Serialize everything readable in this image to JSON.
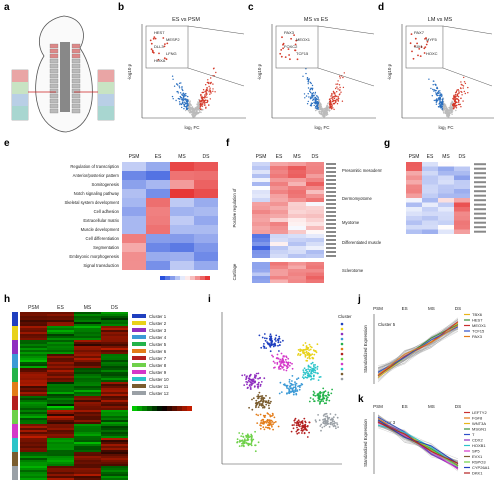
{
  "panels": {
    "a": {
      "label": "a"
    },
    "b": {
      "label": "b",
      "title": "ES vs PSM",
      "xlabel": "log₂ FC",
      "ylabel": "-log10 p",
      "genes": [
        "HES7",
        "MESP2",
        "DLL3",
        "LFNG",
        "HOXA"
      ]
    },
    "c": {
      "label": "c",
      "title": "MS vs ES",
      "xlabel": "log₂ FC",
      "ylabel": "-log10 p",
      "genes": [
        "PAX3",
        "MEOX1",
        "FOXC2",
        "TCF15"
      ]
    },
    "d": {
      "label": "d",
      "title": "LM vs MS",
      "xlabel": "log₂ FC",
      "ylabel": "-log10 p",
      "genes": [
        "PAX7",
        "MYF5",
        "SIX1",
        "HOXC"
      ]
    },
    "e": {
      "label": "e",
      "columns": [
        "PSM",
        "ES",
        "MS",
        "DS"
      ],
      "terms": [
        "Regulation of transcription",
        "Anterior/posterior pattern",
        "Somitogenesis",
        "Notch signaling pathway",
        "Skeletal system development",
        "Cell adhesion",
        "Extracellular matrix",
        "Muscle development",
        "Cell differentiation",
        "Segmentation",
        "Embryonic morphogenesis",
        "Signal transduction"
      ]
    },
    "f": {
      "label": "f",
      "columns": [
        "PSM",
        "ES",
        "MS",
        "DS"
      ],
      "ylabel_top": "Positive regulation of",
      "ylabel_bottom": "Cartilage",
      "groups": [
        "Presomitic mesoderm",
        "Dermomyotome",
        "Myotome",
        "Differentiated muscle",
        "Sclerotome"
      ]
    },
    "g": {
      "label": "g",
      "columns": [
        "PSM",
        "ES",
        "MS",
        "DS"
      ]
    },
    "h": {
      "label": "h",
      "columns": [
        "PSM",
        "ES",
        "MS",
        "DS"
      ],
      "clusters": [
        "Cluster 1",
        "Cluster 2",
        "Cluster 3",
        "Cluster 4",
        "Cluster 5",
        "Cluster 6",
        "Cluster 7",
        "Cluster 8",
        "Cluster 9",
        "Cluster 10",
        "Cluster 11",
        "Cluster 12"
      ],
      "cluster_colors": [
        "#1f3fbf",
        "#e8d21a",
        "#8f2fbf",
        "#3c9ad6",
        "#23b34a",
        "#e37c19",
        "#b31f1f",
        "#6fd14a",
        "#d438c9",
        "#2bc4c9",
        "#7a5c2e",
        "#9aa0a6"
      ]
    },
    "i": {
      "label": "i",
      "legend_title": "Cluster"
    },
    "j": {
      "label": "j",
      "columns": [
        "PSM",
        "ES",
        "MS",
        "DS"
      ],
      "cluster": "Cluster 5",
      "ylabel": "Standardized Expression",
      "genes": [
        "TBX6",
        "HES7",
        "MEOX1",
        "TCF15",
        "PAX3"
      ],
      "gene_colors": [
        "#e8b51a",
        "#3a8f3a",
        "#c92f2f",
        "#2f4fc9",
        "#e37c19"
      ]
    },
    "k": {
      "label": "k",
      "columns": [
        "PSM",
        "ES",
        "MS",
        "DS"
      ],
      "cluster": "Cluster 3",
      "ylabel": "Standardized Expression",
      "genes": [
        "LEFTY2",
        "FGF8",
        "WNT3A",
        "MSGN1",
        "T",
        "CDX2",
        "HOXB1",
        "SP5",
        "EVX1",
        "RSPO3",
        "CYP26A1",
        "DKK1"
      ],
      "gene_colors": [
        "#c92f2f",
        "#e37c19",
        "#e8b51a",
        "#3a8f3a",
        "#2f4fc9",
        "#8f2fbf",
        "#2bc4c9",
        "#d438c9",
        "#7a5c2e",
        "#6fd14a",
        "#1f3fbf",
        "#b31f1f"
      ]
    }
  }
}
